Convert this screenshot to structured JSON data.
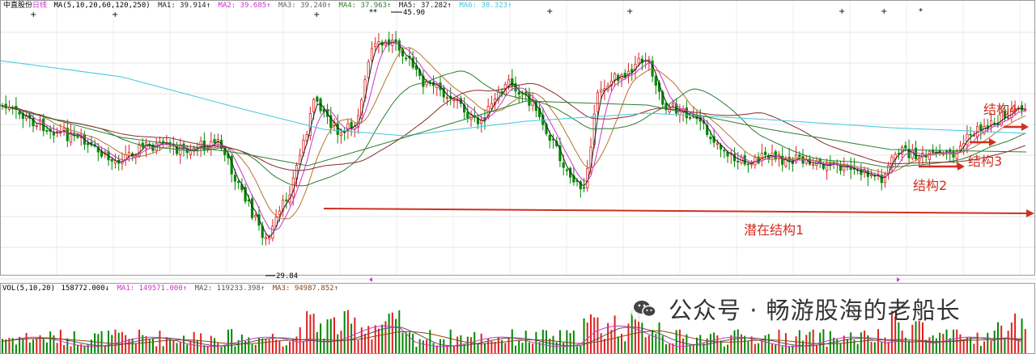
{
  "header": {
    "stock_name": "中直股份",
    "period": "日线",
    "ma_params": "MA(5,10,20,60,120,250)",
    "ma1": "MA1: 39.914↑",
    "ma2": "MA2: 39.685↑",
    "ma3": "MA3: 39.240↑",
    "ma4": "MA4: 37.963↑",
    "ma5": "MA5: 37.282↑",
    "ma6": "MA6: 38.323↑"
  },
  "price_markers": {
    "high": "45.90",
    "low": "29.84"
  },
  "volume_header": {
    "params": "VOL(5,10,20)",
    "vol": "158772.000↓",
    "ma1": "MA1: 149571.000↑",
    "ma2": "MA2: 119233.398↑",
    "ma3": "MA3: 94987.852↑"
  },
  "annotations": {
    "structure1": "潜在结构1",
    "structure2": "结构2",
    "structure3": "结构3",
    "structure4": "结构4"
  },
  "watermark": {
    "text": "公众号 · 畅游股海的老船长"
  },
  "colors": {
    "up": "#e02020",
    "down": "#008800",
    "ma1": "#222222",
    "ma2": "#cc33cc",
    "ma3": "#b87333",
    "ma4": "#2e7d32",
    "ma5": "#1a1a1a",
    "ma6": "#40c8e0",
    "annotation": "#d03020",
    "grid": "#e4e4e4"
  }
}
